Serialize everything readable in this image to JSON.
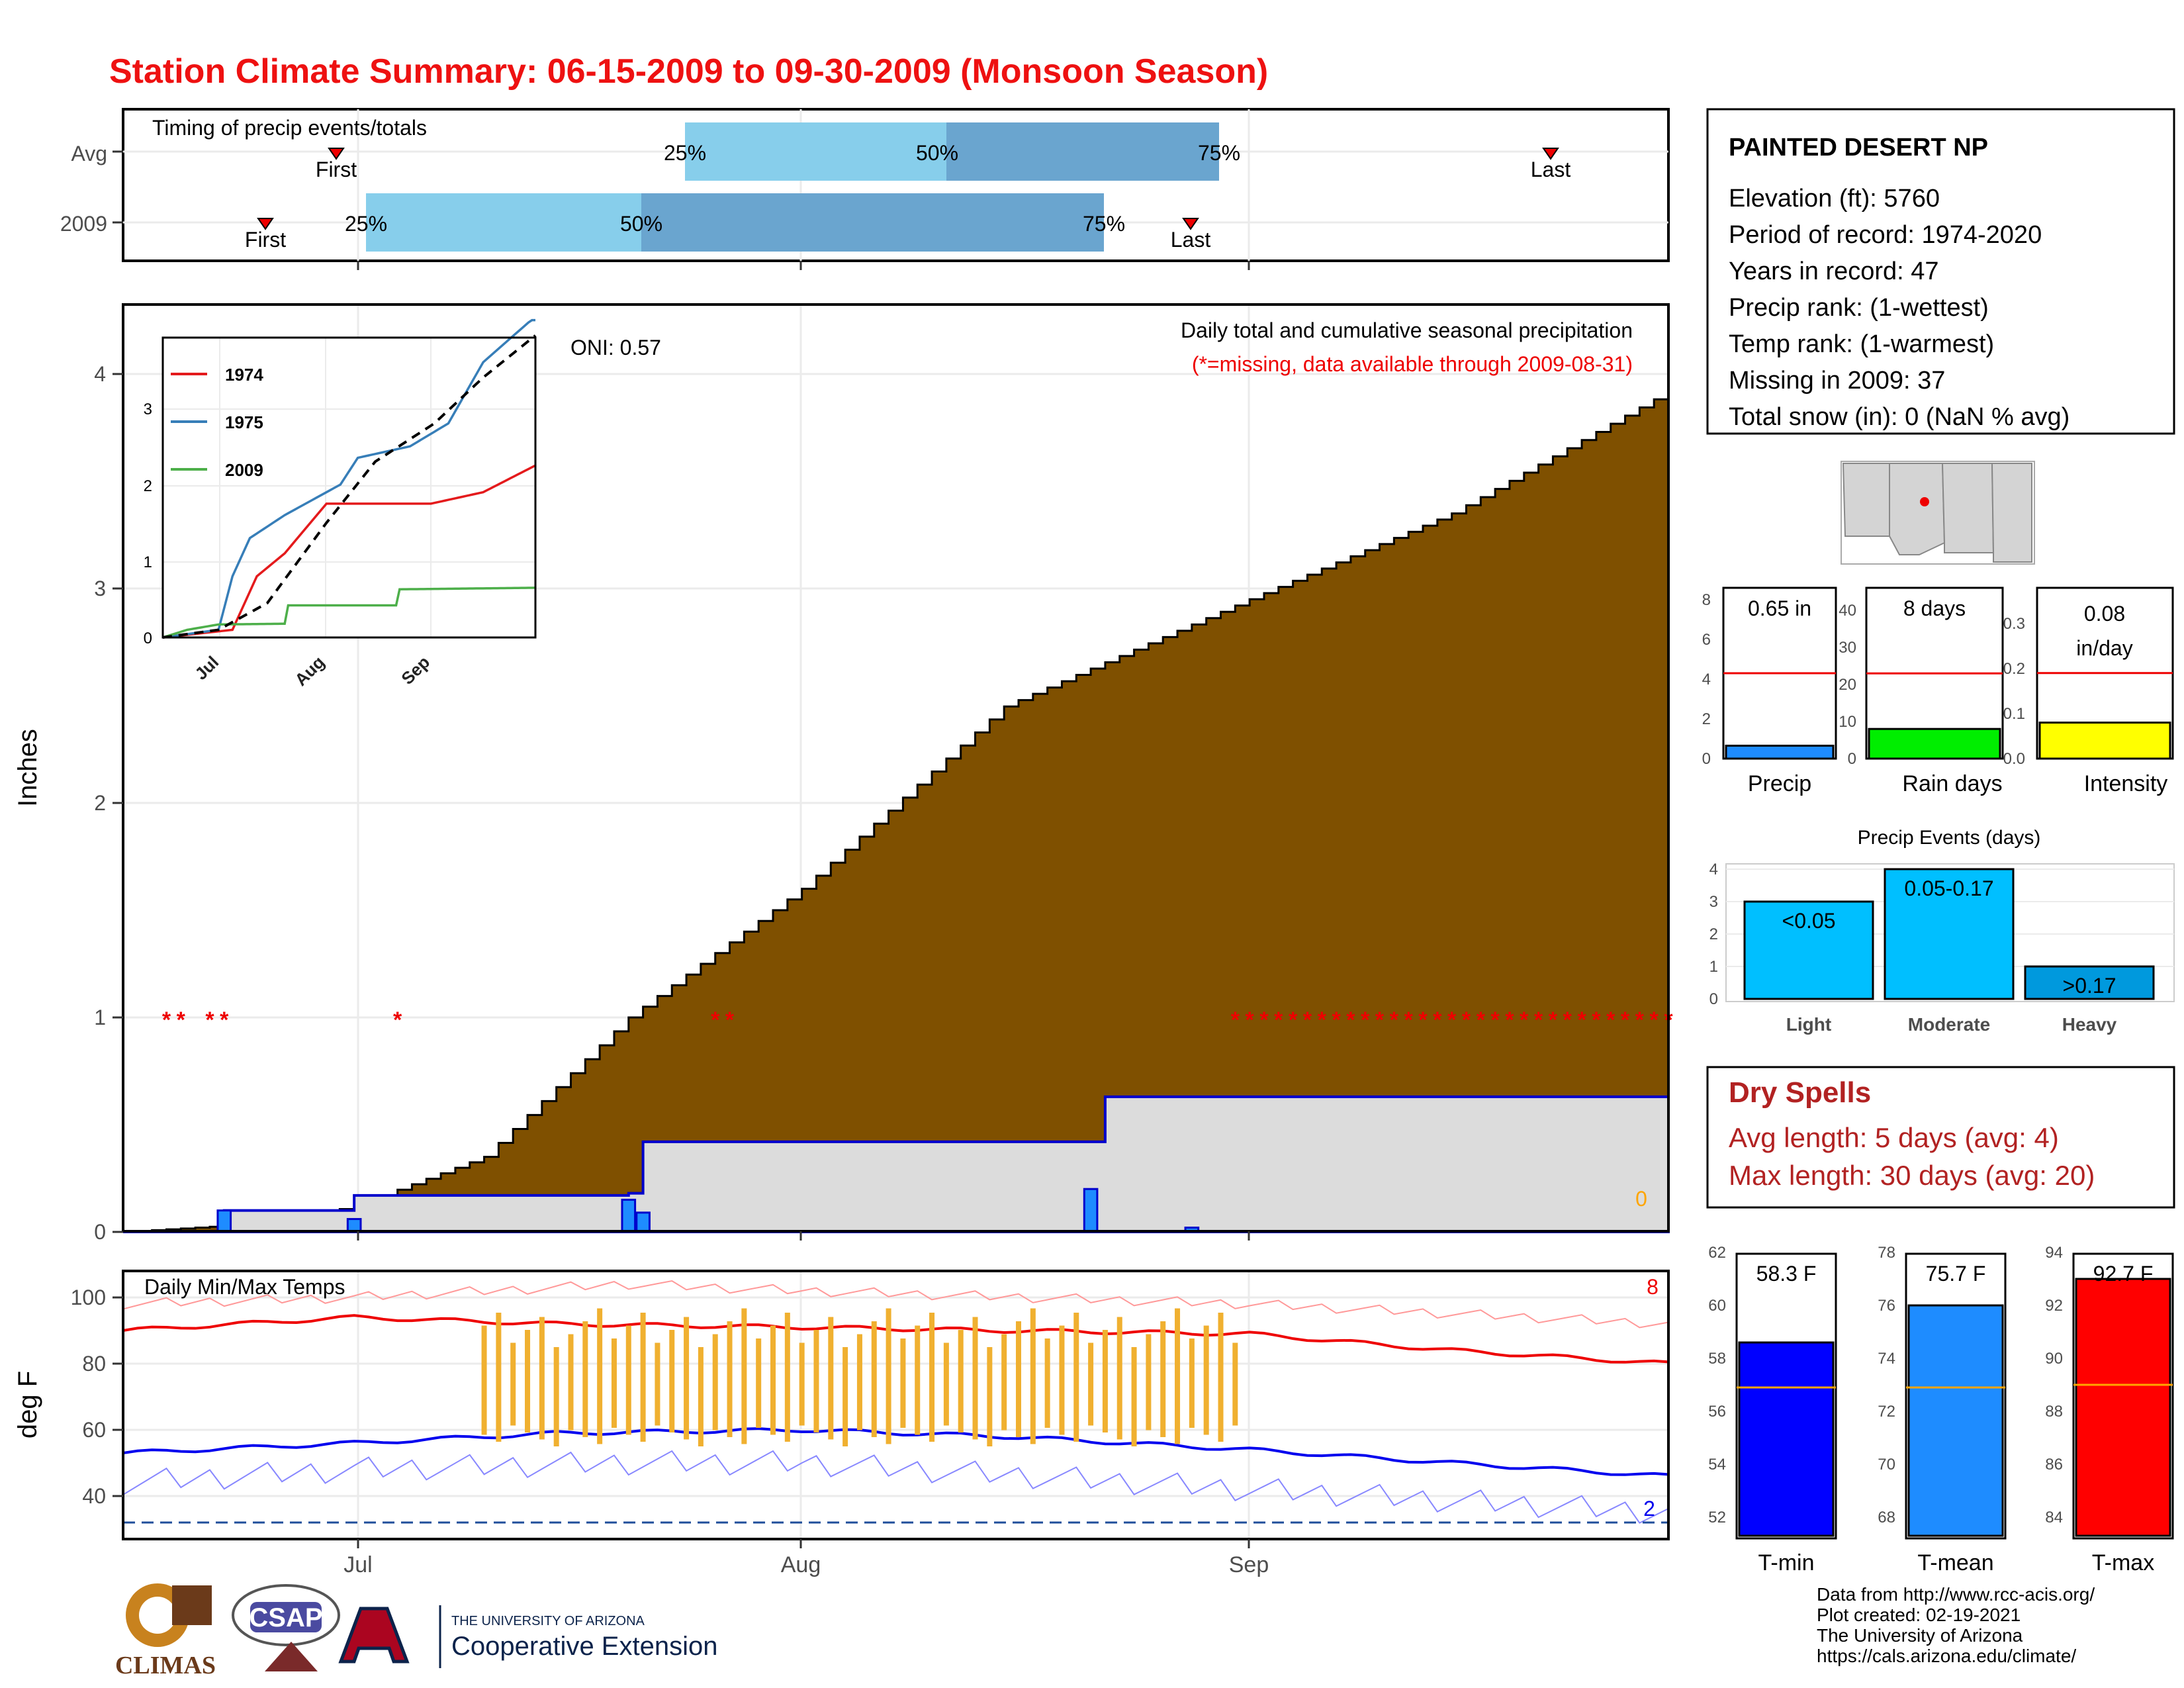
{
  "title": "Station Climate Summary: 06-15-2009 to 09-30-2009 (Monsoon Season)",
  "colors": {
    "title": "#ee1111",
    "cumulative_fill": "#7f5000",
    "normal_fill": "#dcdcdc",
    "normal_line": "#0000cc",
    "daily_bar": "#1e8cff",
    "q_light": "#87ceeb",
    "q_dark": "#6aa5cf",
    "missing": "#ee0000",
    "tmax": "#ee1111",
    "tmin": "#0000ee",
    "range_bar": "#f0b030",
    "dry_spells": "#b22222"
  },
  "timing": {
    "title": "Timing of precip events/totals",
    "rows": [
      {
        "label": "Avg",
        "first": "07-01",
        "q25": "07-27",
        "q50": "08-04",
        "q75": "08-13",
        "last": "09-24",
        "first_label": "First",
        "last_label": "Last",
        "q25_label": "25%",
        "q50_label": "50%",
        "q75_label": "75%"
      },
      {
        "label": "2009",
        "first": "06-20",
        "q25": "07-01",
        "q50": "07-20",
        "q75": "08-21",
        "last": "08-28",
        "first_label": "First",
        "last_label": "Last",
        "q25_label": "25%",
        "q50_label": "50%",
        "q75_label": "75%"
      }
    ]
  },
  "precip_panel": {
    "ylabel": "Inches",
    "subtitle": "Daily total and cumulative seasonal precipitation",
    "note": "(*=missing, data available through 2009-08-31)",
    "oni": "ONI: 0.57",
    "zero_label": "0",
    "y_ticks": [
      "0",
      "1",
      "2",
      "3",
      "4"
    ]
  },
  "chart_data": [
    {
      "type": "area",
      "title": "Daily total and cumulative seasonal precipitation",
      "ylabel": "Inches",
      "ylim": [
        0,
        4.3
      ],
      "x_range": [
        "2009-06-15",
        "2009-09-30"
      ],
      "series": [
        {
          "name": "Cumulative normal (brown area)",
          "x": [
            "06-15",
            "06-25",
            "07-01",
            "07-10",
            "07-20",
            "08-01",
            "08-15",
            "09-01",
            "09-15",
            "09-30"
          ],
          "values": [
            0.0,
            0.04,
            0.12,
            0.35,
            1.0,
            1.6,
            2.45,
            2.95,
            3.35,
            3.92
          ]
        },
        {
          "name": "2009 cumulative (grey area)",
          "x": [
            "06-15",
            "06-22",
            "07-01",
            "07-20",
            "07-21",
            "08-21",
            "08-22",
            "09-30"
          ],
          "values": [
            0.0,
            0.1,
            0.17,
            0.18,
            0.42,
            0.42,
            0.63,
            0.65
          ]
        },
        {
          "name": "Daily precip 2009",
          "x": [
            "06-22",
            "07-01",
            "07-20",
            "07-21",
            "08-21",
            "08-28"
          ],
          "values": [
            0.1,
            0.06,
            0.15,
            0.09,
            0.2,
            0.02
          ]
        }
      ],
      "missing_days": [
        "06-18",
        "06-19",
        "06-21",
        "06-22",
        "07-04",
        "07-26",
        "07-27",
        "08-31 to 09-30"
      ]
    },
    {
      "type": "line",
      "title": "inset cumulative",
      "x_ticks": [
        "Jul",
        "Aug",
        "Sep"
      ],
      "y_ticks": [
        "0",
        "1",
        "2",
        "3"
      ],
      "ylim": [
        0,
        4
      ],
      "series": [
        {
          "name": "1974",
          "x": [
            "06-15",
            "07-05",
            "07-08",
            "07-12",
            "07-20",
            "08-01",
            "08-31",
            "09-15",
            "09-30"
          ],
          "values": [
            0.0,
            0.1,
            0.4,
            0.8,
            1.1,
            1.75,
            1.75,
            1.9,
            2.25
          ]
        },
        {
          "name": "1975",
          "x": [
            "06-15",
            "07-01",
            "07-05",
            "07-10",
            "07-20",
            "08-05",
            "08-10",
            "08-25",
            "09-05",
            "09-15",
            "09-30"
          ],
          "values": [
            0.0,
            0.1,
            0.8,
            1.3,
            1.6,
            2.0,
            2.35,
            2.5,
            2.8,
            3.6,
            4.2
          ]
        },
        {
          "name": "2009",
          "x": [
            "06-15",
            "06-22",
            "07-01",
            "07-20",
            "07-21",
            "08-21",
            "08-22",
            "09-30"
          ],
          "values": [
            0.0,
            0.1,
            0.17,
            0.18,
            0.42,
            0.42,
            0.63,
            0.65
          ]
        },
        {
          "name": "Avg (dashed)",
          "x": [
            "06-15",
            "07-01",
            "07-15",
            "08-01",
            "08-15",
            "09-01",
            "09-15",
            "09-30"
          ],
          "values": [
            0.0,
            0.1,
            0.45,
            1.5,
            2.3,
            2.8,
            3.4,
            3.95
          ]
        }
      ],
      "legend": [
        "1974",
        "1975",
        "2009"
      ]
    },
    {
      "type": "line",
      "title": "Daily Min/Max Temps",
      "ylabel": "deg F",
      "y_ticks": [
        "40",
        "60",
        "80",
        "100"
      ],
      "ylim": [
        30,
        108
      ],
      "series": [
        {
          "name": "Avg Tmax",
          "x": [
            "06-15",
            "07-01",
            "07-15",
            "08-01",
            "08-15",
            "09-01",
            "09-15",
            "09-30"
          ],
          "values": [
            90,
            94,
            92,
            91,
            90,
            89,
            84,
            80
          ]
        },
        {
          "name": "Avg Tmin",
          "x": [
            "06-15",
            "07-01",
            "07-15",
            "08-01",
            "08-15",
            "09-01",
            "09-15",
            "09-30"
          ],
          "values": [
            53,
            56,
            59,
            60,
            58,
            54,
            50,
            46
          ]
        },
        {
          "name": "Record high",
          "x": [
            "06-15",
            "07-01",
            "07-20",
            "08-01",
            "09-01",
            "09-30"
          ],
          "values": [
            98,
            100,
            104,
            102,
            98,
            92
          ]
        },
        {
          "name": "Record low",
          "x": [
            "06-15",
            "07-01",
            "07-20",
            "08-01",
            "09-01",
            "09-30"
          ],
          "values": [
            44,
            48,
            50,
            50,
            42,
            35
          ]
        }
      ],
      "range_bars": {
        "x_start": "07-10",
        "x_end": "08-31",
        "tmax_range": [
          85,
          98
        ],
        "tmin_range": [
          55,
          62
        ]
      },
      "record_high_count": "8",
      "record_low_count": "2",
      "freeze_line": 32
    },
    {
      "type": "bar",
      "title": "Precip / Rain days / Intensity",
      "categories": [
        "Precip",
        "Rain days",
        "Intensity"
      ],
      "values": [
        0.65,
        8,
        0.08
      ],
      "averages": [
        4.3,
        23,
        0.19
      ],
      "labels": [
        "0.65 in",
        "8 days",
        "0.08 in/day"
      ]
    },
    {
      "type": "bar",
      "title": "Precip Events (days)",
      "categories": [
        "Light",
        "Moderate",
        "Heavy"
      ],
      "bar_labels": [
        "<0.05",
        "0.05-0.17",
        ">0.17"
      ],
      "values": [
        3,
        4,
        1
      ],
      "y_ticks": [
        "0",
        "1",
        "2",
        "3",
        "4"
      ]
    },
    {
      "type": "bar",
      "title": "Temperature summary",
      "categories": [
        "T-min",
        "T-mean",
        "T-max"
      ],
      "values": [
        58.3,
        75.7,
        92.7
      ],
      "averages": [
        56.6,
        72.6,
        88.7
      ],
      "labels": [
        "58.3 F",
        "75.7 F",
        "92.7 F"
      ]
    }
  ],
  "station_info": {
    "name": "PAINTED DESERT NP",
    "lines": [
      "Elevation (ft): 5760",
      "Period of record: 1974-2020",
      "Years in record: 47",
      "Precip rank:  (1-wettest)",
      "Temp rank:  (1-warmest)",
      "Missing in 2009: 37",
      "Total snow (in): 0 (NaN % avg)"
    ]
  },
  "dry_spells": {
    "title": "Dry Spells",
    "avg": "Avg length: 5 days (avg: 4)",
    "max": "Max length: 30 days (avg: 20)"
  },
  "x_axis": {
    "ticks": [
      "Jul",
      "Aug",
      "Sep"
    ]
  },
  "footer": {
    "lines": [
      "Data from http://www.rcc-acis.org/",
      "Plot created: 02-19-2021",
      "The University of Arizona",
      "https://cals.arizona.edu/climate/"
    ],
    "logo_climas": "CLIMAS",
    "logo_csap": "CSAP",
    "logo_ua_small": "THE UNIVERSITY OF ARIZONA",
    "logo_ua_big": "Cooperative Extension"
  }
}
